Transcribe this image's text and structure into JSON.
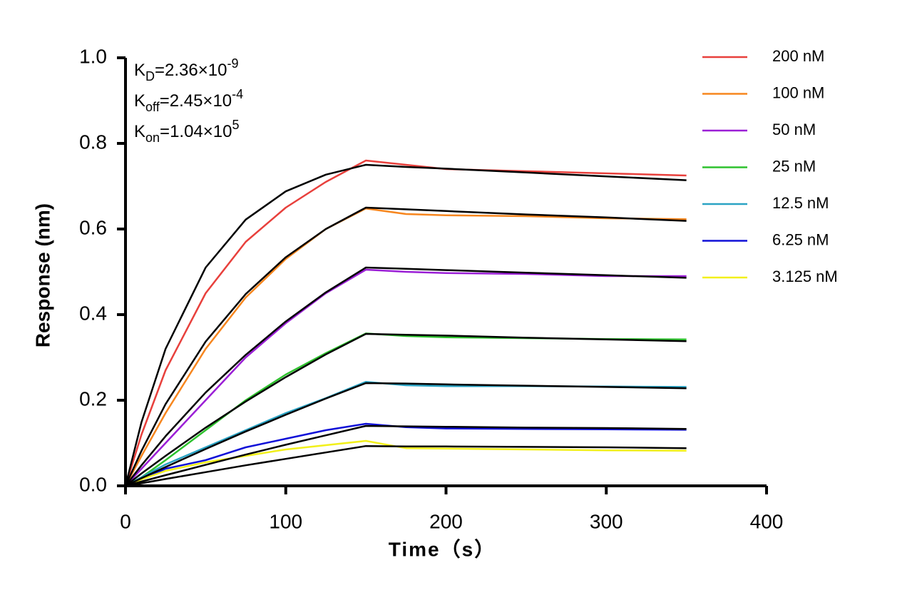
{
  "chart_data": {
    "type": "line",
    "xlabel": "Time（s）",
    "ylabel": "Response (nm)",
    "annotations": [
      {
        "base": "K",
        "sub": "D",
        "text": "=2.36×10",
        "sup": "-9"
      },
      {
        "base": "K",
        "sub": "off",
        "text": "=2.45×10",
        "sup": "-4"
      },
      {
        "base": "K",
        "sub": "on",
        "text": "=1.04×10",
        "sup": "5"
      }
    ],
    "xlim": [
      0,
      400
    ],
    "xticks": [
      0,
      100,
      200,
      300,
      400
    ],
    "ylim": [
      0,
      1
    ],
    "yticks": [
      {
        "value": 0,
        "label": "0.0"
      },
      0.2,
      0.4,
      0.6,
      0.8,
      {
        "value": 1,
        "label": "1.0"
      }
    ],
    "fit_color": "#000000",
    "legend": "right",
    "x": [
      0,
      10,
      25,
      50,
      75,
      100,
      125,
      150,
      175,
      200,
      250,
      300,
      350
    ],
    "series": [
      {
        "name": "200 nM",
        "color": "#e8403c",
        "values": [
          0,
          0.12,
          0.27,
          0.45,
          0.57,
          0.65,
          0.71,
          0.76,
          0.75,
          0.74,
          0.735,
          0.73,
          0.725
        ],
        "fit": [
          0,
          0.149,
          0.32,
          0.51,
          0.622,
          0.688,
          0.727,
          0.75,
          0.745,
          0.741,
          0.732,
          0.723,
          0.714
        ]
      },
      {
        "name": "100 nM",
        "color": "#f7861e",
        "values": [
          0,
          0.07,
          0.17,
          0.32,
          0.44,
          0.53,
          0.6,
          0.648,
          0.635,
          0.632,
          0.63,
          0.625,
          0.623
        ],
        "fit": [
          0,
          0.082,
          0.191,
          0.337,
          0.448,
          0.534,
          0.6,
          0.65,
          0.646,
          0.642,
          0.634,
          0.627,
          0.619
        ]
      },
      {
        "name": "50 nM",
        "color": "#9b1fd6",
        "values": [
          0,
          0.04,
          0.1,
          0.2,
          0.3,
          0.38,
          0.45,
          0.505,
          0.5,
          0.497,
          0.495,
          0.49,
          0.49
        ],
        "fit": [
          0,
          0.048,
          0.116,
          0.218,
          0.306,
          0.384,
          0.452,
          0.51,
          0.507,
          0.504,
          0.498,
          0.492,
          0.486
        ]
      },
      {
        "name": "25 nM",
        "color": "#2ec22e",
        "values": [
          0,
          0.02,
          0.06,
          0.13,
          0.2,
          0.26,
          0.31,
          0.356,
          0.35,
          0.347,
          0.345,
          0.343,
          0.342
        ],
        "fit": [
          0,
          0.029,
          0.07,
          0.136,
          0.197,
          0.254,
          0.307,
          0.355,
          0.353,
          0.351,
          0.346,
          0.342,
          0.338
        ]
      },
      {
        "name": "12.5 nM",
        "color": "#2aa3c4",
        "values": [
          0,
          0.02,
          0.05,
          0.09,
          0.13,
          0.17,
          0.205,
          0.243,
          0.235,
          0.233,
          0.233,
          0.232,
          0.231
        ],
        "fit": [
          0,
          0.018,
          0.044,
          0.086,
          0.127,
          0.166,
          0.204,
          0.24,
          0.239,
          0.237,
          0.234,
          0.231,
          0.228
        ]
      },
      {
        "name": "6.25 nM",
        "color": "#1010d8",
        "values": [
          0,
          0.015,
          0.04,
          0.06,
          0.09,
          0.11,
          0.13,
          0.145,
          0.137,
          0.134,
          0.133,
          0.132,
          0.131
        ],
        "fit": [
          0,
          0.01,
          0.025,
          0.049,
          0.073,
          0.096,
          0.118,
          0.14,
          0.139,
          0.138,
          0.136,
          0.135,
          0.133
        ]
      },
      {
        "name": "3.125 nM",
        "color": "#f2f01a",
        "values": [
          0,
          0.015,
          0.035,
          0.055,
          0.07,
          0.085,
          0.095,
          0.105,
          0.088,
          0.087,
          0.085,
          0.083,
          0.082
        ],
        "fit": [
          0,
          0.006,
          0.016,
          0.032,
          0.048,
          0.063,
          0.078,
          0.093,
          0.092,
          0.092,
          0.091,
          0.09,
          0.088
        ]
      }
    ]
  }
}
